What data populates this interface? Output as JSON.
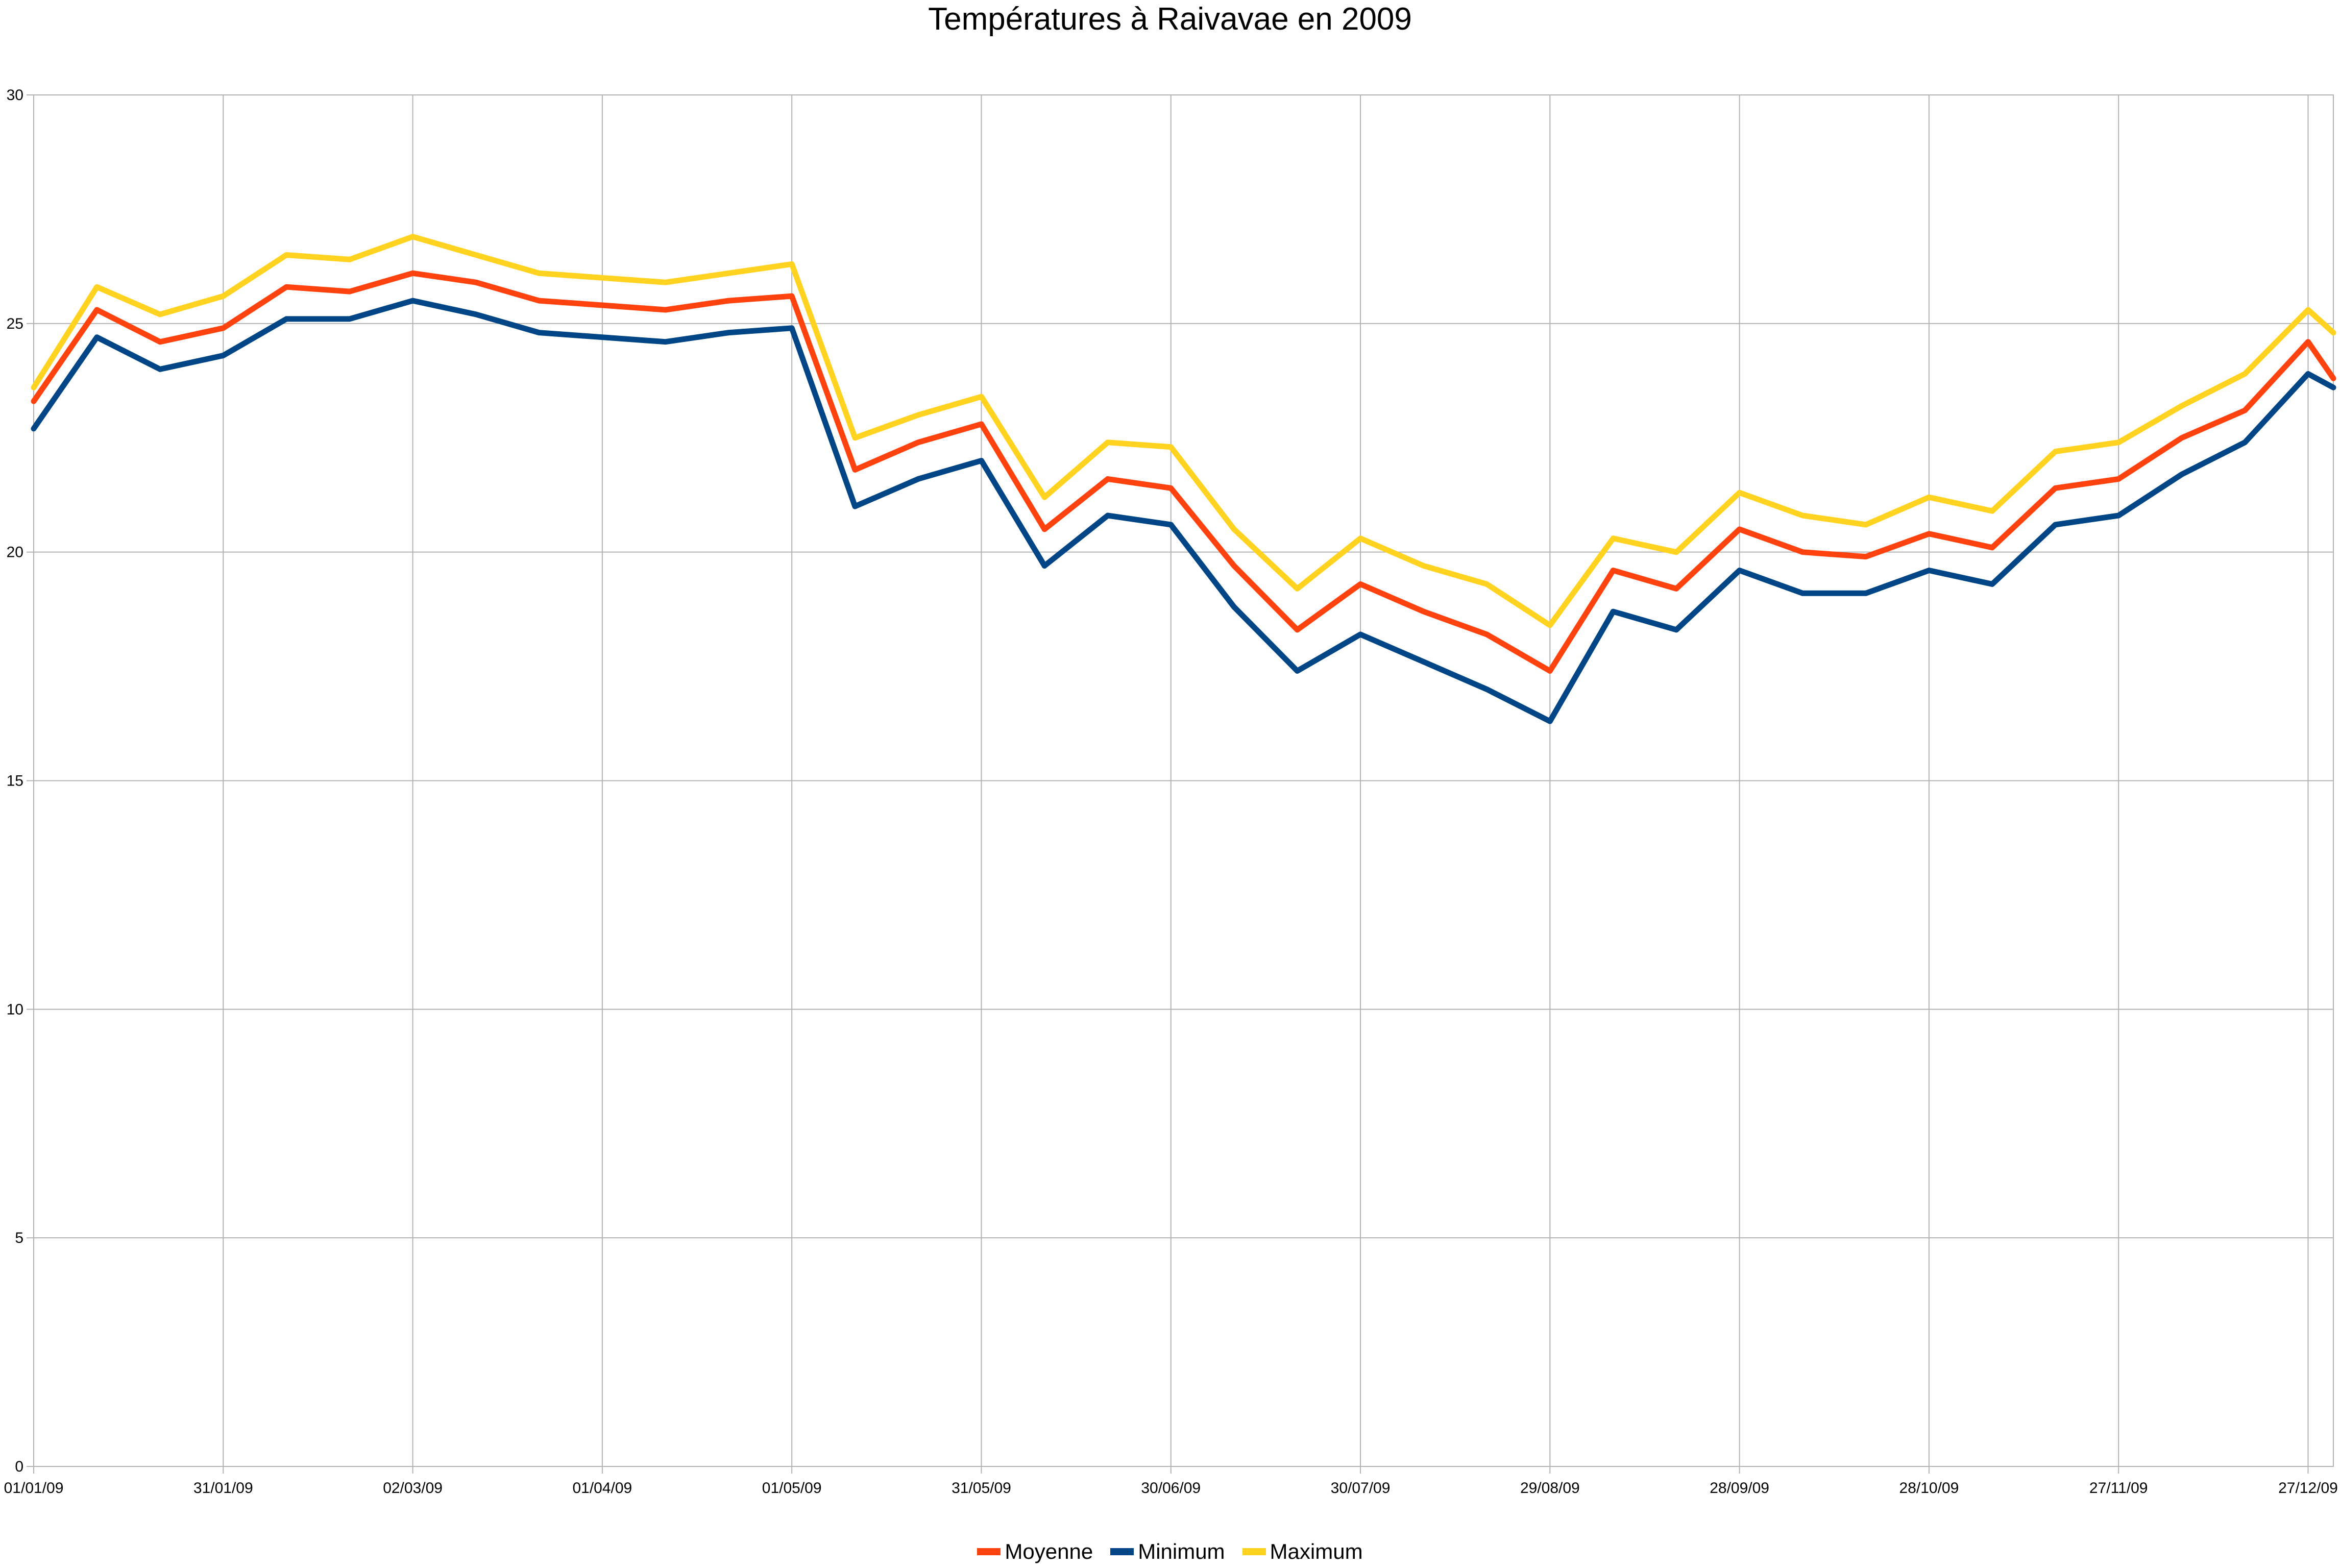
{
  "chart_data": {
    "type": "line",
    "title": "Températures à Raivavae en 2009",
    "xlabel": "",
    "ylabel": "",
    "ylim": [
      0,
      30
    ],
    "yticks": [
      "0",
      "5",
      "10",
      "15",
      "20",
      "25",
      "30"
    ],
    "xlim_days": [
      0,
      364
    ],
    "xtick_labels": [
      "01/01/09",
      "31/01/09",
      "02/03/09",
      "01/04/09",
      "01/05/09",
      "31/05/09",
      "30/06/09",
      "30/07/09",
      "29/08/09",
      "28/09/09",
      "28/10/09",
      "27/11/09",
      "27/12/09"
    ],
    "grid": true,
    "legend_position": "bottom",
    "series": [
      {
        "name": "Moyenne",
        "color": "#ff420e",
        "dates": [
          "01/01/09",
          "11/01/09",
          "21/01/09",
          "31/01/09",
          "10/02/09",
          "20/02/09",
          "02/03/09",
          "12/03/09",
          "22/03/09",
          "01/04/09",
          "11/04/09",
          "21/04/09",
          "01/05/09",
          "11/05/09",
          "21/05/09",
          "31/05/09",
          "10/06/09",
          "20/06/09",
          "30/06/09",
          "10/07/09",
          "20/07/09",
          "30/07/09",
          "09/08/09",
          "19/08/09",
          "29/08/09",
          "08/09/09",
          "18/09/09",
          "28/09/09",
          "08/10/09",
          "18/10/09",
          "28/10/09",
          "07/11/09",
          "17/11/09",
          "27/11/09",
          "07/12/09",
          "17/12/09",
          "27/12/09",
          "31/12/09"
        ],
        "values": [
          23.3,
          25.3,
          24.6,
          24.9,
          25.8,
          25.7,
          26.1,
          25.9,
          25.5,
          25.4,
          25.3,
          25.5,
          25.6,
          21.8,
          22.4,
          22.8,
          20.5,
          21.6,
          21.4,
          19.7,
          18.3,
          19.3,
          18.7,
          18.2,
          17.4,
          19.6,
          19.2,
          20.5,
          20.0,
          19.9,
          20.4,
          20.1,
          21.4,
          21.6,
          22.5,
          23.1,
          24.6,
          23.8
        ]
      },
      {
        "name": "Minimum",
        "color": "#004586",
        "dates": [
          "01/01/09",
          "11/01/09",
          "21/01/09",
          "31/01/09",
          "10/02/09",
          "20/02/09",
          "02/03/09",
          "12/03/09",
          "22/03/09",
          "01/04/09",
          "11/04/09",
          "21/04/09",
          "01/05/09",
          "11/05/09",
          "21/05/09",
          "31/05/09",
          "10/06/09",
          "20/06/09",
          "30/06/09",
          "10/07/09",
          "20/07/09",
          "30/07/09",
          "09/08/09",
          "19/08/09",
          "29/08/09",
          "08/09/09",
          "18/09/09",
          "28/09/09",
          "08/10/09",
          "18/10/09",
          "28/10/09",
          "07/11/09",
          "17/11/09",
          "27/11/09",
          "07/12/09",
          "17/12/09",
          "27/12/09",
          "31/12/09"
        ],
        "values": [
          22.7,
          24.7,
          24.0,
          24.3,
          25.1,
          25.1,
          25.5,
          25.2,
          24.8,
          24.7,
          24.6,
          24.8,
          24.9,
          21.0,
          21.6,
          22.0,
          19.7,
          20.8,
          20.6,
          18.8,
          17.4,
          18.2,
          17.6,
          17.0,
          16.3,
          18.7,
          18.3,
          19.6,
          19.1,
          19.1,
          19.6,
          19.3,
          20.6,
          20.8,
          21.7,
          22.4,
          23.9,
          23.6
        ]
      },
      {
        "name": "Maximum",
        "color": "#ffd320",
        "dates": [
          "01/01/09",
          "11/01/09",
          "21/01/09",
          "31/01/09",
          "10/02/09",
          "20/02/09",
          "02/03/09",
          "12/03/09",
          "22/03/09",
          "01/04/09",
          "11/04/09",
          "21/04/09",
          "01/05/09",
          "11/05/09",
          "21/05/09",
          "31/05/09",
          "10/06/09",
          "20/06/09",
          "30/06/09",
          "10/07/09",
          "20/07/09",
          "30/07/09",
          "09/08/09",
          "19/08/09",
          "29/08/09",
          "08/09/09",
          "18/09/09",
          "28/09/09",
          "08/10/09",
          "18/10/09",
          "28/10/09",
          "07/11/09",
          "17/11/09",
          "27/11/09",
          "07/12/09",
          "17/12/09",
          "27/12/09",
          "31/12/09"
        ],
        "values": [
          23.6,
          25.8,
          25.2,
          25.6,
          26.5,
          26.4,
          26.9,
          26.5,
          26.1,
          26.0,
          25.9,
          26.1,
          26.3,
          22.5,
          23.0,
          23.4,
          21.2,
          22.4,
          22.3,
          20.5,
          19.2,
          20.3,
          19.7,
          19.3,
          18.4,
          20.3,
          20.0,
          21.3,
          20.8,
          20.6,
          21.2,
          20.9,
          22.2,
          22.4,
          23.2,
          23.9,
          25.3,
          24.8
        ]
      }
    ]
  }
}
